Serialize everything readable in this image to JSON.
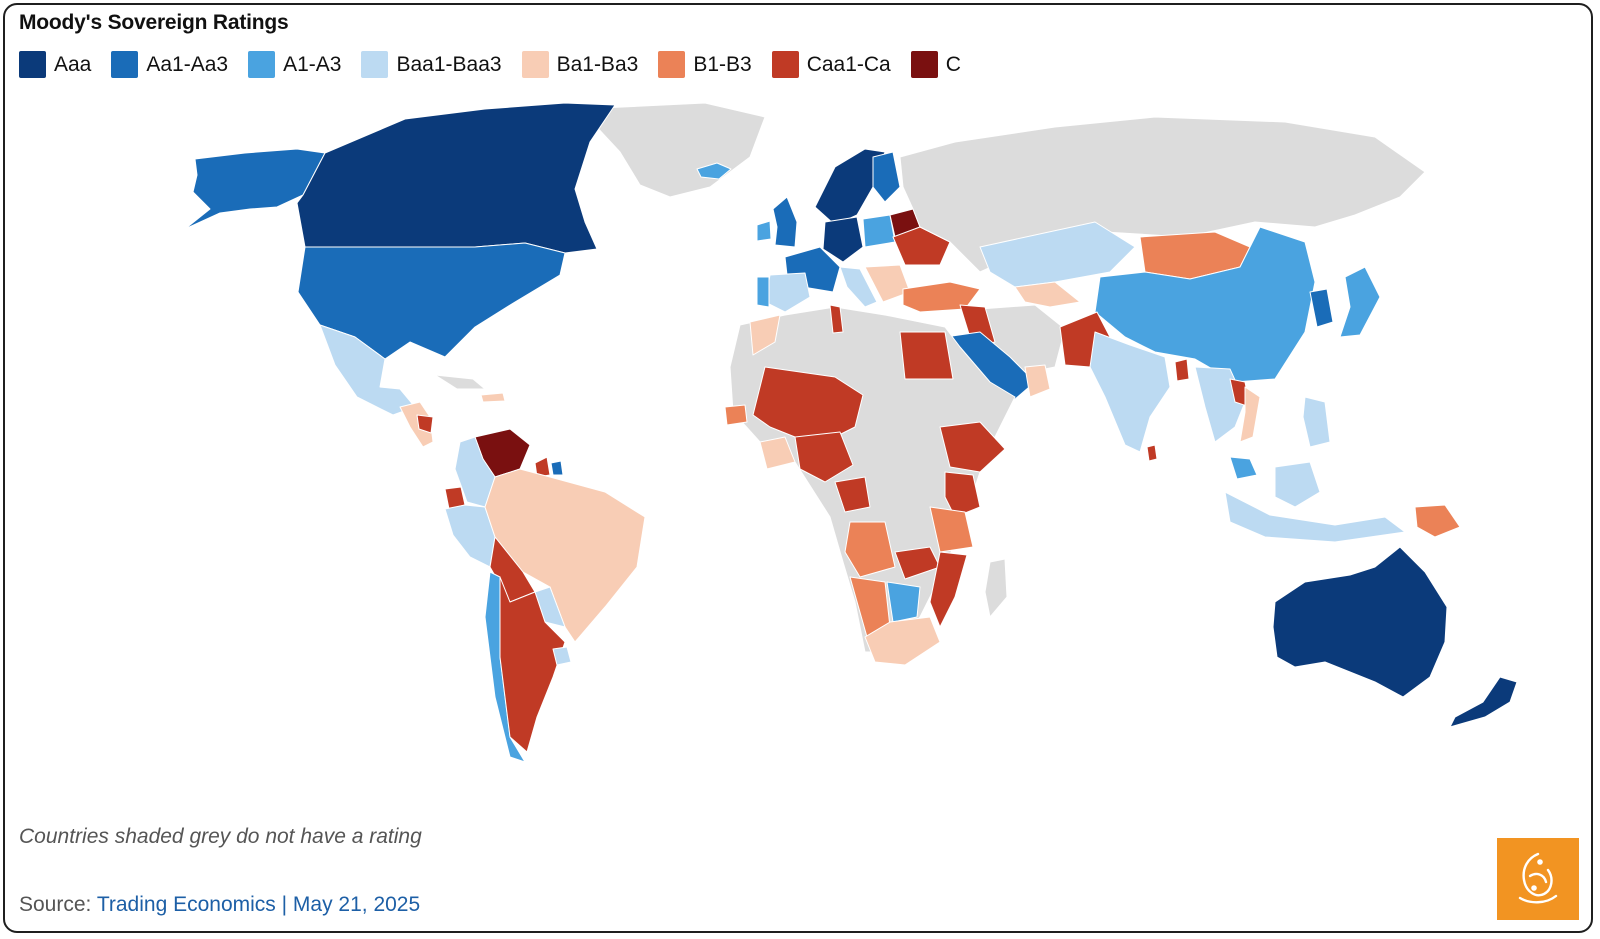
{
  "title": "Moody's Sovereign Ratings",
  "legend": [
    {
      "label": "Aaa",
      "color": "#0b3a7a"
    },
    {
      "label": "Aa1-Aa3",
      "color": "#1a6cb8"
    },
    {
      "label": "A1-A3",
      "color": "#4aa3e0"
    },
    {
      "label": "Baa1-Baa3",
      "color": "#bcdaf2"
    },
    {
      "label": "Ba1-Ba3",
      "color": "#f8cdb5"
    },
    {
      "label": "B1-B3",
      "color": "#eb8257"
    },
    {
      "label": "Caa1-Ca",
      "color": "#c03a25"
    },
    {
      "label": "C",
      "color": "#7a1010"
    }
  ],
  "no_rating_color": "#dcdcdc",
  "note": "Countries shaded grey do not have a rating",
  "source": {
    "prefix": "Source: ",
    "link_text": "Trading Economics | May 21, 2025"
  },
  "logo": {
    "name": "al-jazeera-logo",
    "color": "#f29422"
  }
}
